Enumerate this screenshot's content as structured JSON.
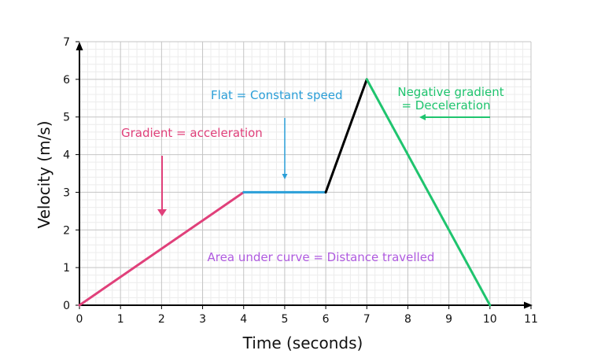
{
  "chart_data": {
    "type": "line",
    "title": "",
    "xlabel": "Time (seconds)",
    "ylabel": "Velocity (m/s)",
    "xlim": [
      0,
      11
    ],
    "ylim": [
      0,
      7
    ],
    "x_ticks": [
      "0",
      "1",
      "2",
      "3",
      "4",
      "5",
      "6",
      "7",
      "8",
      "9",
      "10",
      "11"
    ],
    "y_ticks": [
      "0",
      "1",
      "2",
      "3",
      "4",
      "5",
      "6",
      "7"
    ],
    "grid": true,
    "minor_grid": true,
    "series": [
      {
        "points": [
          [
            0,
            0
          ],
          [
            4,
            3
          ]
        ],
        "color": "#e0407a"
      },
      {
        "points": [
          [
            4,
            3
          ],
          [
            6,
            3
          ]
        ],
        "color": "#2b9fd8"
      },
      {
        "points": [
          [
            6,
            3
          ],
          [
            7,
            6
          ]
        ],
        "color": "#000000"
      },
      {
        "points": [
          [
            7,
            6
          ],
          [
            10,
            0
          ]
        ],
        "color": "#1fc46e"
      }
    ],
    "annotations": [
      {
        "text": "Gradient = acceleration",
        "color": "#e0407a"
      },
      {
        "text": "Flat = Constant speed",
        "color": "#2b9fd8"
      },
      {
        "text": "Negative gradient",
        "color": "#1fc46e"
      },
      {
        "text": "= Deceleration",
        "color": "#1fc46e"
      },
      {
        "text": "Area under curve = Distance travelled",
        "color": "#b05be0"
      }
    ]
  }
}
